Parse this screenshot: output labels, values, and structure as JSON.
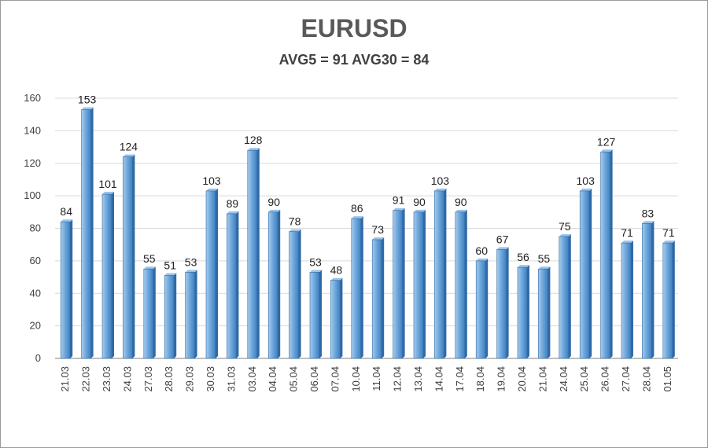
{
  "chart_data": {
    "type": "bar",
    "title": "EURUSD",
    "subtitle": "AVG5 = 91 AVG30 = 84",
    "categories": [
      "21.03",
      "22.03",
      "23.03",
      "24.03",
      "27.03",
      "28.03",
      "29.03",
      "30.03",
      "31.03",
      "03.04",
      "04.04",
      "05.04",
      "06.04",
      "07.04",
      "10.04",
      "11.04",
      "12.04",
      "13.04",
      "14.04",
      "17.04",
      "18.04",
      "19.04",
      "20.04",
      "21.04",
      "24.04",
      "25.04",
      "26.04",
      "27.04",
      "28.04",
      "01.05"
    ],
    "values": [
      84,
      153,
      101,
      124,
      55,
      51,
      53,
      103,
      89,
      128,
      90,
      78,
      53,
      48,
      86,
      73,
      91,
      90,
      103,
      90,
      60,
      67,
      56,
      55,
      75,
      103,
      127,
      71,
      83,
      71
    ],
    "ylim": [
      0,
      160
    ],
    "yticks": [
      0,
      20,
      40,
      60,
      80,
      100,
      120,
      140,
      160
    ],
    "grid": true,
    "bar_color": "#5b9bd5"
  }
}
